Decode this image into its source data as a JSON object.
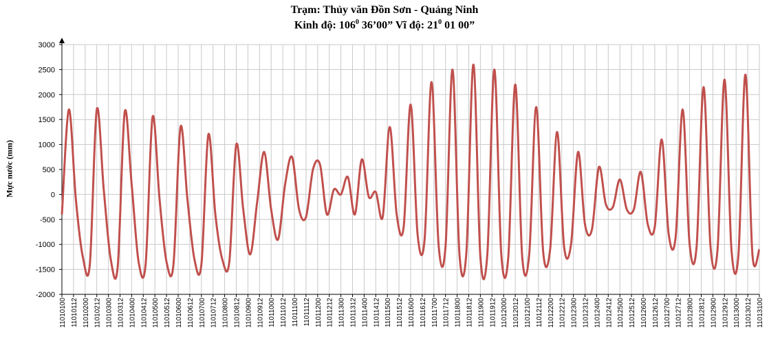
{
  "header": {
    "station_line": "Trạm:  Thủy văn Đồn Sơn - Quảng Ninh",
    "coord_line_prefix": "Kinh độ: 106",
    "coord_sup1": "0",
    "coord_line_mid": " 36’00”  Vĩ độ:  21",
    "coord_sup2": "0",
    "coord_line_suffix": " 01  00”"
  },
  "colors": {
    "series": "#c0504d",
    "grid": "#c8c8c8",
    "axis": "#000000"
  },
  "chart_data": {
    "type": "line",
    "title": "Trạm:  Thủy văn Đồn Sơn - Quảng Ninh",
    "subtitle": "Kinh độ: 106⁰ 36’00”  Vĩ độ:  21⁰ 01  00”",
    "ylabel": "Mực nước (mm)",
    "xlabel": "",
    "ylim": [
      -2000,
      3000
    ],
    "yticks": [
      3000,
      2500,
      2000,
      1500,
      1000,
      500,
      0,
      -500,
      -1000,
      -1500,
      -2000
    ],
    "grid": true,
    "legend": "none",
    "x_ticks": [
      "11010100",
      "11010112",
      "11010200",
      "11010212",
      "11010300",
      "11010312",
      "11010400",
      "11010412",
      "11010500",
      "11010512",
      "11010600",
      "11010612",
      "11010700",
      "11010712",
      "11010800",
      "11010812",
      "11010900",
      "11010912",
      "11011000",
      "11011012",
      "11011100",
      "11011112",
      "11011200",
      "11011212",
      "11011300",
      "11011312",
      "11011400",
      "11011412",
      "11011500",
      "11011512",
      "11011600",
      "11011612",
      "11011700",
      "11011712",
      "11011800",
      "11011812",
      "11011900",
      "11011912",
      "11012000",
      "11012012",
      "11012100",
      "11012112",
      "11012200",
      "11012212",
      "11012300",
      "11012312",
      "11012400",
      "11012412",
      "11012500",
      "11012512",
      "11012600",
      "11012612",
      "11012700",
      "11012712",
      "11012800",
      "11012812",
      "11012900",
      "11012912",
      "11013000",
      "11013012",
      "11013100"
    ],
    "series": [
      {
        "values": [
          -400,
          1700,
          -100,
          -1250,
          -1400,
          1700,
          100,
          -1300,
          -1450,
          1650,
          200,
          -1350,
          -1400,
          1550,
          -100,
          -1350,
          -1400,
          1350,
          -100,
          -1300,
          -1400,
          1200,
          -400,
          -1300,
          -1350,
          1000,
          -300,
          -1200,
          -150,
          850,
          -300,
          -900,
          200,
          750,
          -300,
          -450,
          500,
          600,
          -400,
          100,
          0,
          350,
          -400,
          700,
          -50,
          50,
          -450,
          1350,
          -400,
          -650,
          1800,
          -800,
          -900,
          2250,
          -1000,
          -1050,
          2500,
          -1200,
          -1150,
          2600,
          -1250,
          -1200,
          2500,
          -1200,
          -1250,
          2200,
          -1250,
          -1200,
          1750,
          -1150,
          -1100,
          1250,
          -1050,
          -1000,
          850,
          -600,
          -700,
          550,
          -200,
          -250,
          300,
          -300,
          -300,
          450,
          -600,
          -650,
          1100,
          -800,
          -850,
          1700,
          -1000,
          -1050,
          2150,
          -1050,
          -1100,
          2300,
          -1100,
          -1200,
          2400,
          -1200,
          -1100
        ]
      }
    ]
  }
}
